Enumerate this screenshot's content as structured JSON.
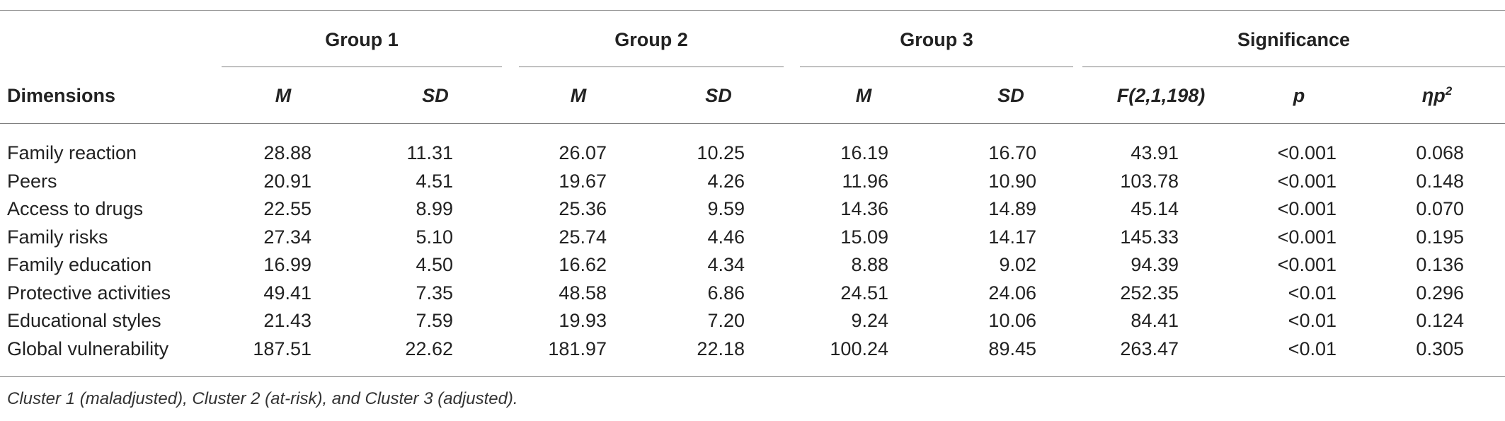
{
  "table": {
    "group_headers": [
      "Group 1",
      "Group 2",
      "Group 3",
      "Significance"
    ],
    "column_headers": {
      "dimensions": "Dimensions",
      "m": "M",
      "sd": "SD",
      "f": "F(2,1,198)",
      "p": "p",
      "eta_base": "ηp",
      "eta_sup": "2"
    },
    "rows": [
      {
        "label": "Family reaction",
        "g1m": "28.88",
        "g1sd": "11.31",
        "g2m": "26.07",
        "g2sd": "10.25",
        "g3m": "16.19",
        "g3sd": "16.70",
        "f": "43.91",
        "p": "<0.001",
        "eta": "0.068"
      },
      {
        "label": "Peers",
        "g1m": "20.91",
        "g1sd": "4.51",
        "g2m": "19.67",
        "g2sd": "4.26",
        "g3m": "11.96",
        "g3sd": "10.90",
        "f": "103.78",
        "p": "<0.001",
        "eta": "0.148"
      },
      {
        "label": "Access to drugs",
        "g1m": "22.55",
        "g1sd": "8.99",
        "g2m": "25.36",
        "g2sd": "9.59",
        "g3m": "14.36",
        "g3sd": "14.89",
        "f": "45.14",
        "p": "<0.001",
        "eta": "0.070"
      },
      {
        "label": "Family risks",
        "g1m": "27.34",
        "g1sd": "5.10",
        "g2m": "25.74",
        "g2sd": "4.46",
        "g3m": "15.09",
        "g3sd": "14.17",
        "f": "145.33",
        "p": "<0.001",
        "eta": "0.195"
      },
      {
        "label": "Family education",
        "g1m": "16.99",
        "g1sd": "4.50",
        "g2m": "16.62",
        "g2sd": "4.34",
        "g3m": "8.88",
        "g3sd": "9.02",
        "f": "94.39",
        "p": "<0.001",
        "eta": "0.136"
      },
      {
        "label": "Protective activities",
        "g1m": "49.41",
        "g1sd": "7.35",
        "g2m": "48.58",
        "g2sd": "6.86",
        "g3m": "24.51",
        "g3sd": "24.06",
        "f": "252.35",
        "p": "<0.01",
        "eta": "0.296"
      },
      {
        "label": "Educational styles",
        "g1m": "21.43",
        "g1sd": "7.59",
        "g2m": "19.93",
        "g2sd": "7.20",
        "g3m": "9.24",
        "g3sd": "10.06",
        "f": "84.41",
        "p": "<0.01",
        "eta": "0.124"
      },
      {
        "label": "Global vulnerability",
        "g1m": "187.51",
        "g1sd": "22.62",
        "g2m": "181.97",
        "g2sd": "22.18",
        "g3m": "100.24",
        "g3sd": "89.45",
        "f": "263.47",
        "p": "<0.01",
        "eta": "0.305"
      }
    ],
    "footnote": "Cluster 1 (maladjusted), Cluster 2 (at-risk), and Cluster 3 (adjusted)."
  }
}
